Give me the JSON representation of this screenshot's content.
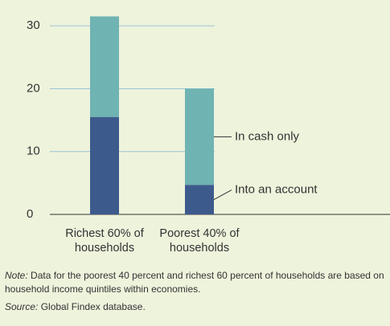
{
  "chart_data": {
    "type": "stacked_bar",
    "categories": [
      "Richest 60% of households",
      "Poorest 40% of households"
    ],
    "series": [
      {
        "name": "Into an account",
        "color": "#3d5a8c",
        "values": [
          15.5,
          4.7
        ]
      },
      {
        "name": "In cash only",
        "color": "#6fb3b3",
        "values": [
          16,
          15.3
        ]
      }
    ],
    "ylim": [
      0,
      32
    ],
    "yticks": [
      0,
      10,
      20,
      30
    ],
    "grid": true
  },
  "note": {
    "label": "Note:",
    "text": "Data for the poorest 40 percent and richest 60 percent of households are based on household income quintiles within economies."
  },
  "source": {
    "label": "Source:",
    "text": "Global Findex database."
  }
}
